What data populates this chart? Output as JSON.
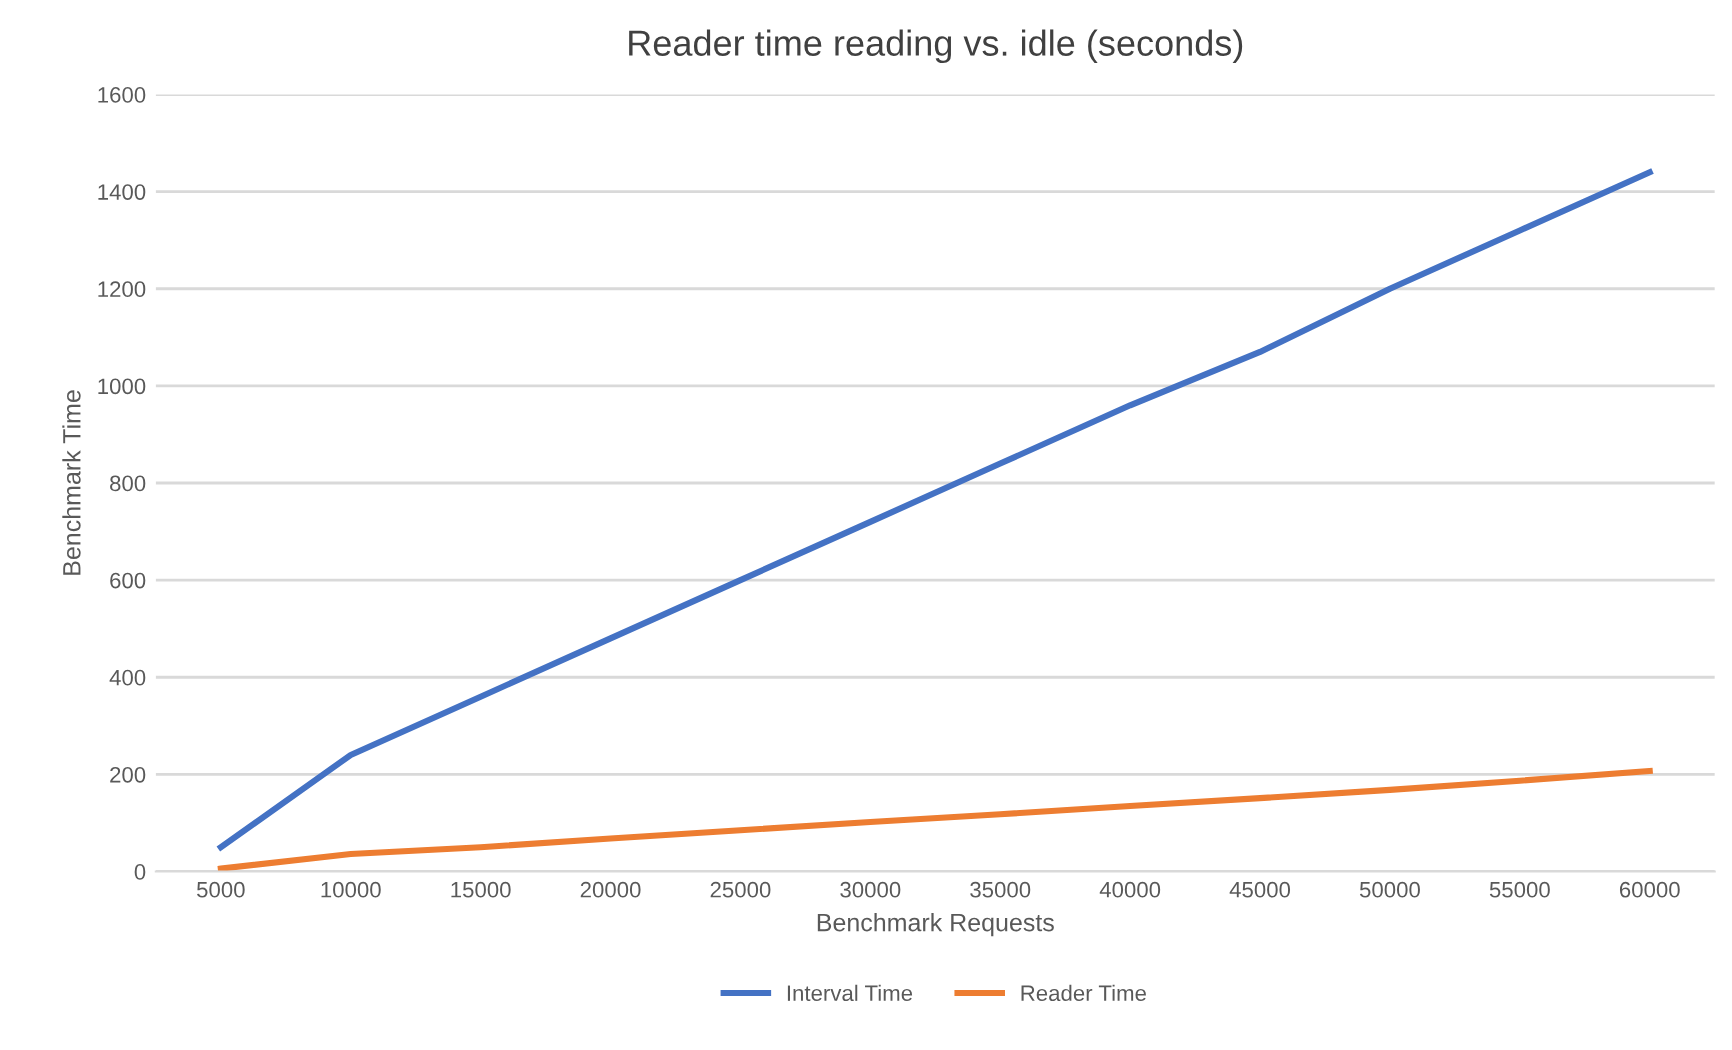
{
  "chart_data": {
    "type": "line",
    "title": "Reader time reading vs. idle (seconds)",
    "xlabel": "Benchmark Requests",
    "ylabel": "Benchmark Time",
    "categories": [
      "5000",
      "10000",
      "15000",
      "20000",
      "25000",
      "30000",
      "35000",
      "40000",
      "45000",
      "50000",
      "55000",
      "60000"
    ],
    "series": [
      {
        "name": "Interval Time",
        "color": "#4472c4",
        "values": [
          50,
          240,
          360,
          480,
          600,
          720,
          840,
          960,
          1070,
          1200,
          1320,
          1440
        ]
      },
      {
        "name": "Reader Time",
        "color": "#ed7d31",
        "values": [
          6,
          36,
          50,
          68,
          85,
          102,
          118,
          135,
          151,
          168,
          187,
          207
        ]
      }
    ],
    "ylim": [
      0,
      1600
    ],
    "yticks": [
      0,
      200,
      400,
      600,
      800,
      1000,
      1200,
      1400,
      1600
    ],
    "grid": "y",
    "legend": "bottom",
    "marker": "none",
    "line_style": "solid"
  }
}
